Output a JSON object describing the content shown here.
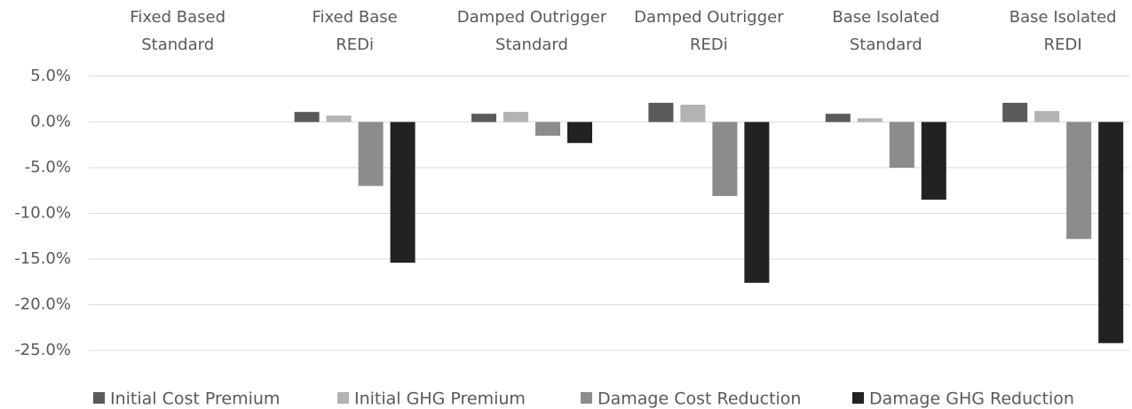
{
  "chart_data": {
    "type": "bar",
    "categories": [
      [
        "Fixed Based",
        "Standard"
      ],
      [
        "Fixed Base",
        "REDi"
      ],
      [
        "Damped Outrigger",
        "Standard"
      ],
      [
        "Damped Outrigger",
        "REDi"
      ],
      [
        "Base Isolated",
        "Standard"
      ],
      [
        "Base Isolated",
        "REDI"
      ]
    ],
    "series": [
      {
        "name": "Initial Cost Premium",
        "color": "#5a5a5a",
        "values": [
          0,
          1.1,
          0.9,
          2.1,
          0.9,
          2.1
        ]
      },
      {
        "name": "Initial GHG Premium",
        "color": "#b3b3b3",
        "values": [
          0,
          0.7,
          1.1,
          1.9,
          0.4,
          1.2
        ]
      },
      {
        "name": "Damage Cost Reduction",
        "color": "#8c8c8c",
        "values": [
          0,
          -7.0,
          -1.5,
          -8.1,
          -5.0,
          -12.8
        ]
      },
      {
        "name": "Damage GHG Reduction",
        "color": "#222222",
        "values": [
          0,
          -15.4,
          -2.3,
          -17.6,
          -8.5,
          -24.2
        ]
      }
    ],
    "ylim": [
      -25,
      5
    ],
    "yticks": [
      {
        "value": 5,
        "label": "5.0%"
      },
      {
        "value": 0,
        "label": "0.0%"
      },
      {
        "value": -5,
        "label": "-5.0%"
      },
      {
        "value": -10,
        "label": "-10.0%"
      },
      {
        "value": -15,
        "label": "-15.0%"
      },
      {
        "value": -20,
        "label": "-20.0%"
      },
      {
        "value": -25,
        "label": "-25.0%"
      }
    ],
    "grid": true,
    "legend": "bottom"
  }
}
